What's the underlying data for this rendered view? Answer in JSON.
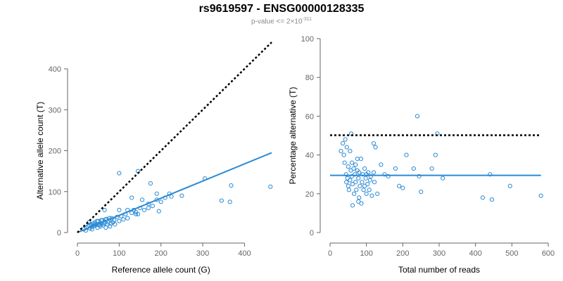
{
  "title": "rs9619597 - ENSG00000128335",
  "subtitle": {
    "prefix": "p-value <= 2×10",
    "exponent": "-311"
  },
  "colors": {
    "points": "#2a8ad4",
    "fit": "#2a8ad4",
    "reference": "#000000",
    "axis": "#666666"
  },
  "chart_data": [
    {
      "type": "scatter",
      "xlabel": "Reference allele count (G)",
      "ylabel": "Alternative allele count (T)",
      "xlim": [
        0,
        470
      ],
      "ylim": [
        0,
        400
      ],
      "xticks": [
        0,
        100,
        200,
        300,
        400
      ],
      "yticks": [
        0,
        100,
        200,
        300,
        400
      ],
      "reference_line": {
        "style": "dotted",
        "color": "#000000",
        "from": [
          0,
          0
        ],
        "to": [
          465,
          465
        ]
      },
      "fit_line": {
        "style": "solid",
        "from": [
          0,
          0
        ],
        "to": [
          465,
          195
        ]
      },
      "points": [
        [
          22,
          12
        ],
        [
          25,
          15
        ],
        [
          28,
          18
        ],
        [
          30,
          10
        ],
        [
          32,
          20
        ],
        [
          35,
          14
        ],
        [
          38,
          22
        ],
        [
          40,
          16
        ],
        [
          42,
          25
        ],
        [
          45,
          18
        ],
        [
          48,
          12
        ],
        [
          50,
          28
        ],
        [
          52,
          20
        ],
        [
          55,
          15
        ],
        [
          58,
          22
        ],
        [
          60,
          30
        ],
        [
          62,
          18
        ],
        [
          65,
          25
        ],
        [
          68,
          12
        ],
        [
          70,
          33
        ],
        [
          72,
          20
        ],
        [
          75,
          28
        ],
        [
          78,
          15
        ],
        [
          80,
          22
        ],
        [
          82,
          35
        ],
        [
          85,
          25
        ],
        [
          88,
          30
        ],
        [
          90,
          20
        ],
        [
          95,
          38
        ],
        [
          100,
          28
        ],
        [
          105,
          40
        ],
        [
          110,
          32
        ],
        [
          115,
          45
        ],
        [
          120,
          35
        ],
        [
          130,
          48
        ],
        [
          135,
          55
        ],
        [
          140,
          50
        ],
        [
          145,
          45
        ],
        [
          150,
          60
        ],
        [
          160,
          55
        ],
        [
          170,
          70
        ],
        [
          180,
          65
        ],
        [
          190,
          80
        ],
        [
          200,
          75
        ],
        [
          210,
          85
        ],
        [
          220,
          95
        ],
        [
          250,
          90
        ],
        [
          20,
          5
        ],
        [
          15,
          8
        ],
        [
          35,
          8
        ],
        [
          28,
          25
        ],
        [
          33,
          18
        ],
        [
          43,
          20
        ],
        [
          47,
          28
        ],
        [
          53,
          18
        ],
        [
          57,
          30
        ],
        [
          63,
          22
        ],
        [
          67,
          32
        ],
        [
          73,
          25
        ],
        [
          77,
          35
        ],
        [
          100,
          145
        ],
        [
          145,
          150
        ],
        [
          175,
          120
        ],
        [
          195,
          52
        ],
        [
          225,
          88
        ],
        [
          305,
          132
        ],
        [
          345,
          78
        ],
        [
          365,
          75
        ],
        [
          368,
          115
        ],
        [
          462,
          112
        ],
        [
          65,
          55
        ],
        [
          130,
          85
        ],
        [
          190,
          95
        ],
        [
          100,
          55
        ],
        [
          155,
          80
        ],
        [
          170,
          60
        ],
        [
          140,
          45
        ],
        [
          120,
          55
        ]
      ]
    },
    {
      "type": "scatter",
      "xlabel": "Total number of reads",
      "ylabel": "Percentage alternative (T)",
      "xlim": [
        0,
        600
      ],
      "ylim": [
        0,
        100
      ],
      "xticks": [
        0,
        100,
        200,
        300,
        400,
        500,
        600
      ],
      "yticks": [
        0,
        20,
        40,
        60,
        80,
        100
      ],
      "reference_line": {
        "style": "dotted",
        "color": "#000000",
        "from": [
          0,
          50.2
        ],
        "to": [
          580,
          50.2
        ]
      },
      "fit_line": {
        "style": "solid",
        "from": [
          0,
          29.5
        ],
        "to": [
          580,
          29.5
        ]
      },
      "points": [
        [
          30,
          42
        ],
        [
          35,
          46
        ],
        [
          38,
          40
        ],
        [
          40,
          36
        ],
        [
          42,
          48
        ],
        [
          44,
          30
        ],
        [
          45,
          26
        ],
        [
          46,
          44
        ],
        [
          48,
          28
        ],
        [
          50,
          34
        ],
        [
          50,
          24
        ],
        [
          52,
          22
        ],
        [
          55,
          42
        ],
        [
          55,
          27
        ],
        [
          57,
          32
        ],
        [
          58,
          51
        ],
        [
          60,
          36
        ],
        [
          60,
          29
        ],
        [
          62,
          25
        ],
        [
          65,
          33
        ],
        [
          66,
          20
        ],
        [
          68,
          30
        ],
        [
          70,
          35
        ],
        [
          70,
          26
        ],
        [
          72,
          22
        ],
        [
          75,
          38
        ],
        [
          75,
          32
        ],
        [
          78,
          28
        ],
        [
          80,
          31
        ],
        [
          80,
          18
        ],
        [
          82,
          24
        ],
        [
          85,
          38
        ],
        [
          86,
          15
        ],
        [
          88,
          26
        ],
        [
          90,
          30
        ],
        [
          92,
          22
        ],
        [
          95,
          33
        ],
        [
          98,
          28
        ],
        [
          100,
          20
        ],
        [
          100,
          30
        ],
        [
          103,
          25
        ],
        [
          105,
          31
        ],
        [
          108,
          22
        ],
        [
          110,
          27
        ],
        [
          112,
          29
        ],
        [
          115,
          19
        ],
        [
          120,
          46
        ],
        [
          120,
          31
        ],
        [
          122,
          26
        ],
        [
          125,
          44
        ],
        [
          130,
          20
        ],
        [
          140,
          35
        ],
        [
          150,
          30
        ],
        [
          160,
          29
        ],
        [
          180,
          33
        ],
        [
          190,
          24
        ],
        [
          200,
          23
        ],
        [
          210,
          40
        ],
        [
          230,
          33
        ],
        [
          240,
          60
        ],
        [
          245,
          29
        ],
        [
          250,
          21
        ],
        [
          280,
          33
        ],
        [
          290,
          40
        ],
        [
          295,
          51
        ],
        [
          310,
          28
        ],
        [
          420,
          18
        ],
        [
          440,
          30
        ],
        [
          445,
          17
        ],
        [
          495,
          24
        ],
        [
          580,
          19
        ],
        [
          62,
          14
        ],
        [
          78,
          16
        ],
        [
          95,
          24
        ]
      ]
    }
  ]
}
